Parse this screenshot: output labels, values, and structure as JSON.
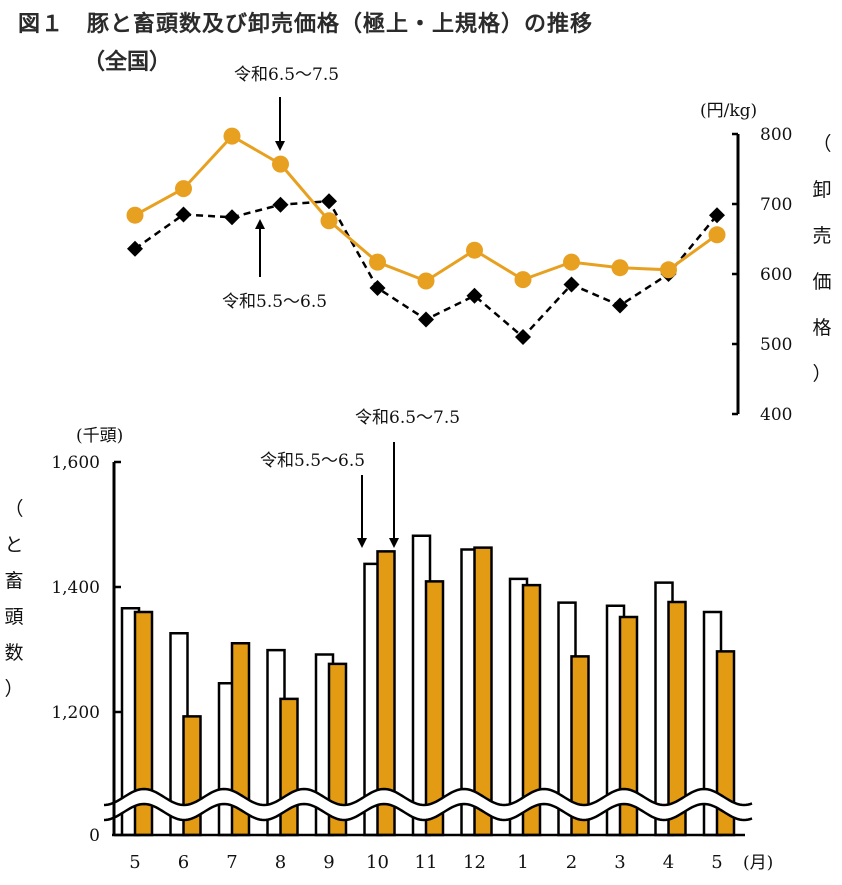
{
  "title": "図１　豚と畜頭数及び卸売価格（極上・上規格）の推移",
  "subtitle": "（全国）",
  "colors": {
    "accent": "#E8A020",
    "black": "#000000",
    "bar_fill": "#E39B14"
  },
  "x_axis": {
    "categories": [
      "5",
      "6",
      "7",
      "8",
      "9",
      "10",
      "11",
      "12",
      "1",
      "2",
      "3",
      "4",
      "5"
    ],
    "unit_label": "(月)"
  },
  "chart_data": [
    {
      "type": "line",
      "y_unit_label": "(円/kg)",
      "ylabel": "（卸売価格）",
      "ylim": [
        400,
        800
      ],
      "yticks": [
        400,
        500,
        600,
        700,
        800
      ],
      "categories": [
        "5",
        "6",
        "7",
        "8",
        "9",
        "10",
        "11",
        "12",
        "1",
        "2",
        "3",
        "4",
        "5"
      ],
      "series": [
        {
          "name": "令和6.5〜7.5",
          "style": "solid orange circles",
          "values": [
            684,
            722,
            797,
            757,
            676,
            617,
            590,
            634,
            592,
            617,
            609,
            606,
            656
          ]
        },
        {
          "name": "令和5.5〜6.5",
          "style": "dashed black diamonds",
          "values": [
            636,
            685,
            681,
            699,
            704,
            580,
            535,
            569,
            510,
            585,
            555,
            600,
            684
          ]
        }
      ],
      "annotations": [
        "令和6.5〜7.5",
        "令和5.5〜6.5"
      ]
    },
    {
      "type": "bar",
      "y_unit_label": "(千頭)",
      "ylabel": "（と畜頭数）",
      "ylim": [
        1100,
        1600
      ],
      "axis_break": true,
      "yticks": [
        0,
        1200,
        1400,
        1600
      ],
      "ytick_labels": [
        "0",
        "1,200",
        "1,400",
        "1,600"
      ],
      "categories": [
        "5",
        "6",
        "7",
        "8",
        "9",
        "10",
        "11",
        "12",
        "1",
        "2",
        "3",
        "4",
        "5"
      ],
      "series": [
        {
          "name": "令和5.5〜6.5",
          "style": "white bars",
          "values": [
            1366,
            1326,
            1246,
            1299,
            1292,
            1437,
            1482,
            1460,
            1413,
            1375,
            1370,
            1407,
            1360
          ]
        },
        {
          "name": "令和6.5〜7.5",
          "style": "orange bars",
          "values": [
            1360,
            1193,
            1310,
            1221,
            1277,
            1457,
            1409,
            1463,
            1403,
            1289,
            1352,
            1376,
            1297
          ]
        }
      ],
      "annotations": [
        "令和5.5〜6.5",
        "令和6.5〜7.5"
      ]
    }
  ]
}
